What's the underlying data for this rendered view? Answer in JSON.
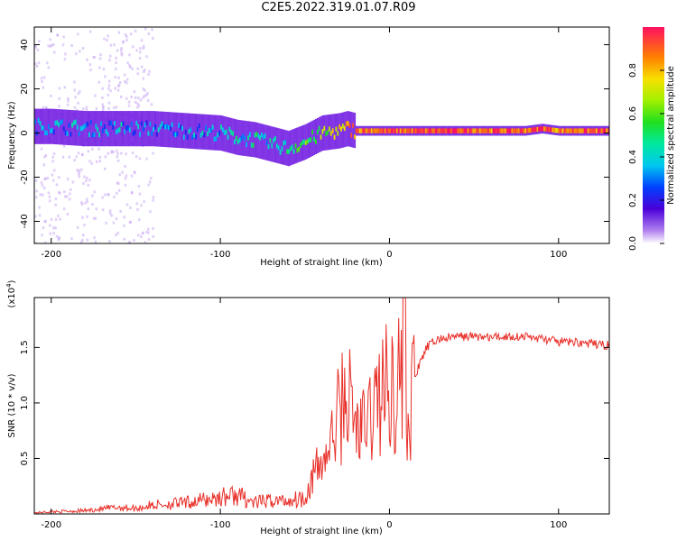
{
  "title": "C2E5.2022.319.01.07.R09",
  "colors": {
    "snr_line": "#e8302a",
    "spectrogram_floor": "#7b22e0",
    "axis": "#000000"
  },
  "chart_data": [
    {
      "type": "heatmap",
      "xlabel": "Height of straight line (km)",
      "ylabel": "Frequency (Hz)",
      "xlim": [
        -210,
        130
      ],
      "ylim": [
        -50,
        48
      ],
      "x_ticks": [
        -200,
        -100,
        0,
        100
      ],
      "y_ticks": [
        -40,
        -20,
        0,
        20,
        40
      ],
      "colorbar": {
        "label": "Normalized spectral amplitude",
        "range": [
          0.0,
          1.0
        ],
        "ticks": [
          0.0,
          0.2,
          0.4,
          0.6,
          0.8
        ],
        "colormap": "rainbow (violet to red)"
      },
      "ridge": {
        "description": "Dominant spectral ridge (frequency in Hz vs height in km)",
        "x": [
          -210,
          -200,
          -180,
          -160,
          -140,
          -120,
          -100,
          -90,
          -80,
          -70,
          -60,
          -50,
          -40,
          -30,
          -25,
          -20,
          -10,
          0,
          10,
          20,
          40,
          60,
          80,
          90,
          100,
          110,
          130
        ],
        "y": [
          3,
          3,
          2,
          2,
          2,
          1,
          0,
          -2,
          -3,
          -5,
          -7,
          -4,
          0,
          1,
          2,
          1,
          1,
          1,
          1,
          1,
          1,
          1,
          1,
          2,
          1,
          1,
          1
        ],
        "amplitude": [
          0.3,
          0.35,
          0.35,
          0.35,
          0.3,
          0.3,
          0.35,
          0.4,
          0.45,
          0.4,
          0.45,
          0.55,
          0.6,
          0.7,
          0.85,
          0.9,
          0.9,
          0.9,
          0.9,
          0.9,
          0.95,
          0.9,
          0.9,
          0.95,
          0.85,
          0.9,
          0.9
        ]
      },
      "grid": false
    },
    {
      "type": "line",
      "xlabel": "Height of straight line (km)",
      "ylabel": "SNR (10 * v/v)",
      "y_exponent_label": "(x10",
      "y_exponent_power": "4",
      "y_exponent_close": ")",
      "xlim": [
        -210,
        130
      ],
      "ylim": [
        0,
        1.95
      ],
      "x_ticks": [
        -200,
        -100,
        0,
        100
      ],
      "y_ticks": [
        0.5,
        1.0,
        1.5
      ],
      "y_tick_labels": [
        "0.5",
        "1.0",
        "1.5"
      ],
      "series": [
        {
          "x": [
            -210,
            -200,
            -180,
            -160,
            -150,
            -140,
            -120,
            -100,
            -90,
            -80,
            -70,
            -60,
            -50,
            -45,
            -40,
            -35,
            -30,
            -25,
            -20,
            -15,
            -10,
            -5,
            0,
            5,
            8,
            10,
            12,
            14,
            18,
            22,
            26,
            30,
            40,
            50,
            60,
            70,
            80,
            90,
            100,
            110,
            120,
            130
          ],
          "y": [
            0.01,
            0.02,
            0.03,
            0.06,
            0.05,
            0.08,
            0.1,
            0.15,
            0.17,
            0.1,
            0.12,
            0.12,
            0.15,
            0.35,
            0.45,
            0.6,
            0.9,
            1.1,
            0.8,
            0.75,
            0.95,
            1.1,
            1.15,
            1.2,
            1.3,
            1.1,
            0.65,
            1.2,
            1.35,
            1.5,
            1.55,
            1.58,
            1.6,
            1.6,
            1.59,
            1.6,
            1.6,
            1.58,
            1.55,
            1.55,
            1.53,
            1.52
          ]
        }
      ],
      "grid": false
    }
  ]
}
